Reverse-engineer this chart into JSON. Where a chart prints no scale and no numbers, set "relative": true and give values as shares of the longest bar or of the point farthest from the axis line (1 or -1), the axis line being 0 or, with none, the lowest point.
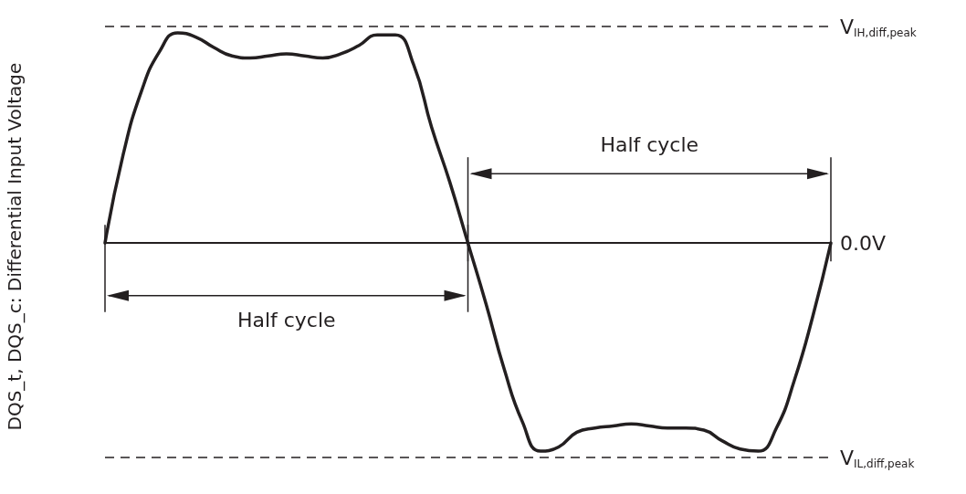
{
  "chart_data": {
    "type": "line",
    "relative": true,
    "ylabel": "DQS_t, DQS_c: Differential Input Voltage",
    "categories": [
      null,
      null,
      null,
      null,
      null,
      null,
      null,
      null,
      null,
      null,
      null,
      null,
      null,
      null,
      null,
      null,
      null,
      null,
      null,
      null,
      null,
      null,
      null,
      null,
      null,
      null,
      null,
      null,
      null,
      null,
      null,
      null,
      null,
      null,
      null,
      null,
      null,
      null,
      null,
      null,
      null
    ],
    "series": [
      {
        "color": "#231f20",
        "values": [
          0,
          0.42,
          0.72,
          0.91,
          1,
          0.98,
          0.93,
          0.89,
          0.88,
          0.89,
          0.9,
          0.89,
          0.88,
          0.9,
          0.94,
          0.99,
          0.99,
          0.85,
          0.55,
          0.29,
          0,
          -0.29,
          -0.6,
          -0.85,
          -0.99,
          -0.97,
          -0.9,
          -0.88,
          -0.87,
          -0.86,
          -0.87,
          -0.88,
          -0.88,
          -0.89,
          -0.94,
          -0.98,
          -0.99,
          -0.88,
          -0.65,
          -0.35,
          0
        ]
      }
    ],
    "ref_lines": [
      {
        "axis": "y",
        "value": 1.03,
        "label": "V$_{IH,diff,peak}$",
        "line_style": "dashed",
        "color": "#231f20"
      },
      {
        "axis": "y",
        "value": 0,
        "label": "0.0V",
        "line_style": "solid",
        "color": "#231f20"
      },
      {
        "axis": "y",
        "value": -1.02,
        "label": "V$_{IL,diff,peak}$",
        "line_style": "dashed",
        "color": "#231f20"
      }
    ],
    "annotations": [
      "Half cycle",
      "Half cycle"
    ],
    "marker": "none",
    "line_style": "solid",
    "grid": false
  }
}
